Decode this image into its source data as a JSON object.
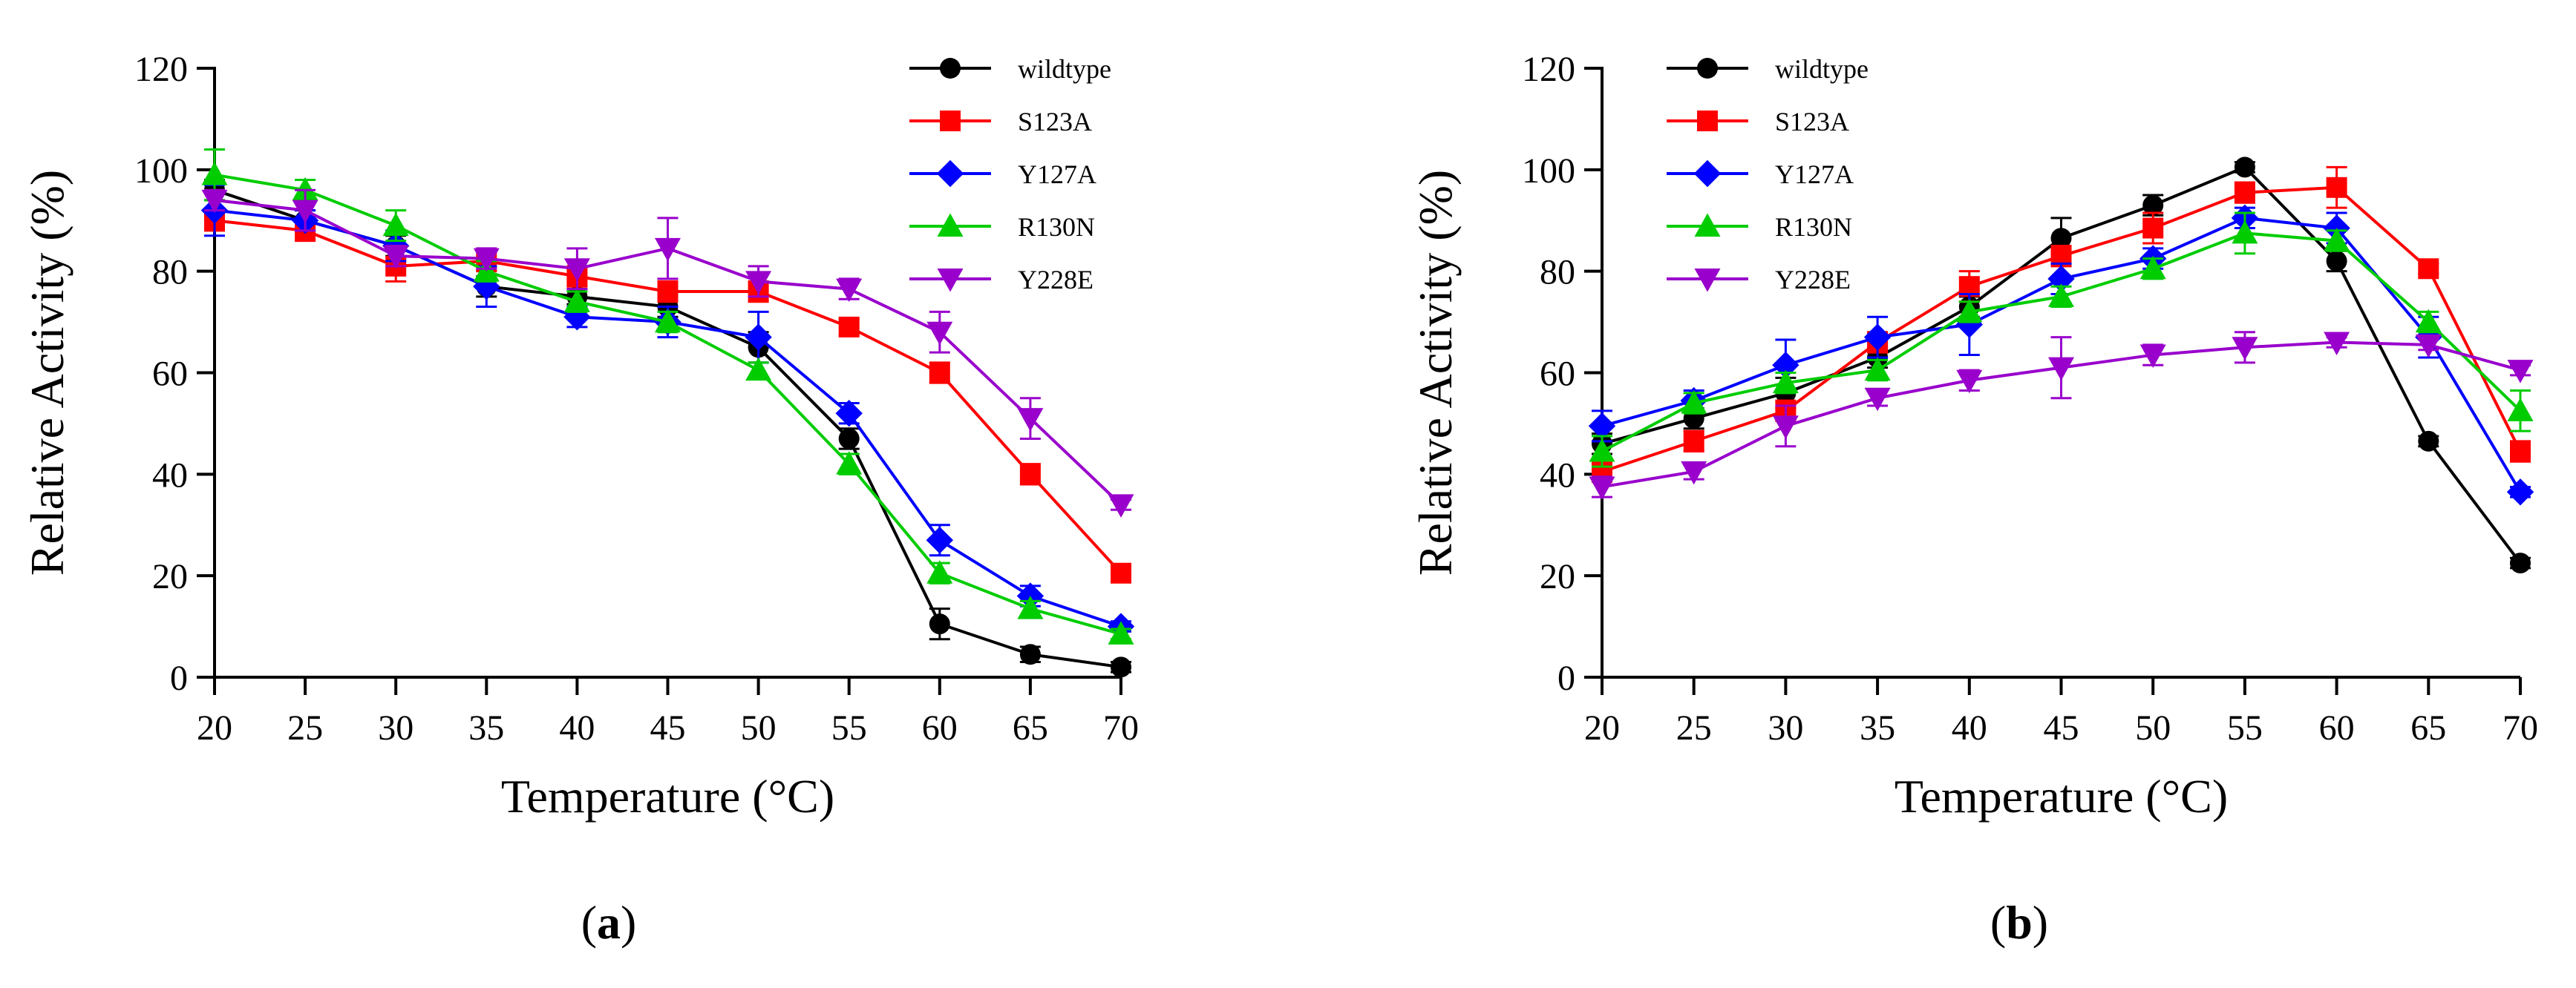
{
  "chart_data": [
    {
      "type": "line",
      "panel_label": "a",
      "xlabel": "Temperature (°C)",
      "ylabel": "Relative Activity (%)",
      "x": [
        20,
        25,
        30,
        35,
        40,
        45,
        50,
        55,
        60,
        65,
        70
      ],
      "xticks": [
        "20",
        "25",
        "30",
        "35",
        "40",
        "45",
        "50",
        "55",
        "60",
        "65",
        "70"
      ],
      "yticks": [
        "0",
        "20",
        "40",
        "60",
        "80",
        "100",
        "120"
      ],
      "xlim": [
        20,
        70
      ],
      "ylim": [
        0,
        120
      ],
      "legend_position": "top-right",
      "series": [
        {
          "name": "wildtype",
          "color": "#000000",
          "marker": "circle",
          "values": [
            96,
            90,
            85,
            77,
            75,
            73,
            65,
            47,
            10.5,
            4.5,
            2
          ],
          "errors": [
            2,
            2,
            2,
            2,
            1.5,
            2,
            3,
            2,
            3,
            1.5,
            1
          ]
        },
        {
          "name": "S123A",
          "color": "#ff0000",
          "marker": "square",
          "values": [
            90,
            88,
            81,
            82,
            79,
            76,
            76,
            69,
            60,
            40,
            20.5
          ],
          "errors": [
            2,
            2,
            3,
            2,
            2,
            2,
            2,
            1.5,
            2,
            2,
            1
          ]
        },
        {
          "name": "Y127A",
          "color": "#0000ff",
          "marker": "diamond",
          "values": [
            92,
            90,
            85,
            77,
            71,
            70,
            67,
            52,
            27,
            16,
            10
          ],
          "errors": [
            5,
            2,
            3,
            4,
            2,
            3,
            5,
            2,
            3,
            2,
            1
          ]
        },
        {
          "name": "R130N",
          "color": "#00cc00",
          "marker": "triangle-up",
          "values": [
            99,
            96,
            89,
            80,
            74,
            70,
            60.5,
            42,
            20.5,
            13.5,
            8.5
          ],
          "errors": [
            5,
            2,
            3,
            2,
            2,
            2,
            1.5,
            2,
            2,
            1.5,
            1
          ]
        },
        {
          "name": "Y228E",
          "color": "#9900cc",
          "marker": "triangle-down",
          "values": [
            94,
            92,
            83,
            82.5,
            80.5,
            84.5,
            78,
            76.5,
            68,
            51,
            34
          ],
          "errors": [
            2,
            4,
            2,
            2,
            4,
            6,
            3,
            2,
            4,
            4,
            1
          ]
        }
      ]
    },
    {
      "type": "line",
      "panel_label": "b",
      "xlabel": "Temperature (°C)",
      "ylabel": "Relative Activity (%)",
      "x": [
        20,
        25,
        30,
        35,
        40,
        45,
        50,
        55,
        60,
        65,
        70
      ],
      "xticks": [
        "20",
        "25",
        "30",
        "35",
        "40",
        "45",
        "50",
        "55",
        "60",
        "65",
        "70"
      ],
      "yticks": [
        "0",
        "20",
        "40",
        "60",
        "80",
        "100",
        "120"
      ],
      "xlim": [
        20,
        70
      ],
      "ylim": [
        0,
        120
      ],
      "legend_position": "top-left",
      "series": [
        {
          "name": "wildtype",
          "color": "#000000",
          "marker": "circle",
          "values": [
            46,
            51,
            56,
            63,
            73,
            86.5,
            93,
            100.5,
            82,
            46.5,
            22.5
          ],
          "errors": [
            2,
            2,
            3,
            2,
            2,
            4,
            2,
            1,
            2,
            1,
            1
          ]
        },
        {
          "name": "S123A",
          "color": "#ff0000",
          "marker": "square",
          "values": [
            40.5,
            46.5,
            52.5,
            66,
            77,
            83,
            88.5,
            95.5,
            96.5,
            80.5,
            44.5
          ],
          "errors": [
            2,
            2,
            2,
            2,
            3,
            2,
            3,
            2,
            4,
            1,
            2
          ]
        },
        {
          "name": "Y127A",
          "color": "#0000ff",
          "marker": "diamond",
          "values": [
            49.5,
            54.5,
            61.5,
            67,
            69.5,
            78.5,
            82.5,
            90.5,
            88.5,
            67,
            36.5
          ],
          "errors": [
            3,
            2,
            5,
            4,
            6,
            3,
            2,
            2,
            3,
            4,
            1
          ]
        },
        {
          "name": "R130N",
          "color": "#00cc00",
          "marker": "triangle-up",
          "values": [
            44.5,
            54,
            58,
            60.5,
            72,
            75,
            80.5,
            87.5,
            86,
            70,
            52.5
          ],
          "errors": [
            3,
            2,
            2,
            2,
            2,
            2,
            2,
            4,
            2,
            2,
            4
          ]
        },
        {
          "name": "Y228E",
          "color": "#9900cc",
          "marker": "triangle-down",
          "values": [
            37.5,
            40.5,
            49.5,
            55,
            58.5,
            61,
            63.5,
            65,
            66,
            65.5,
            60.5
          ],
          "errors": [
            2,
            1.5,
            4,
            1.5,
            2,
            6,
            2,
            3,
            1,
            1,
            1
          ]
        }
      ]
    }
  ]
}
